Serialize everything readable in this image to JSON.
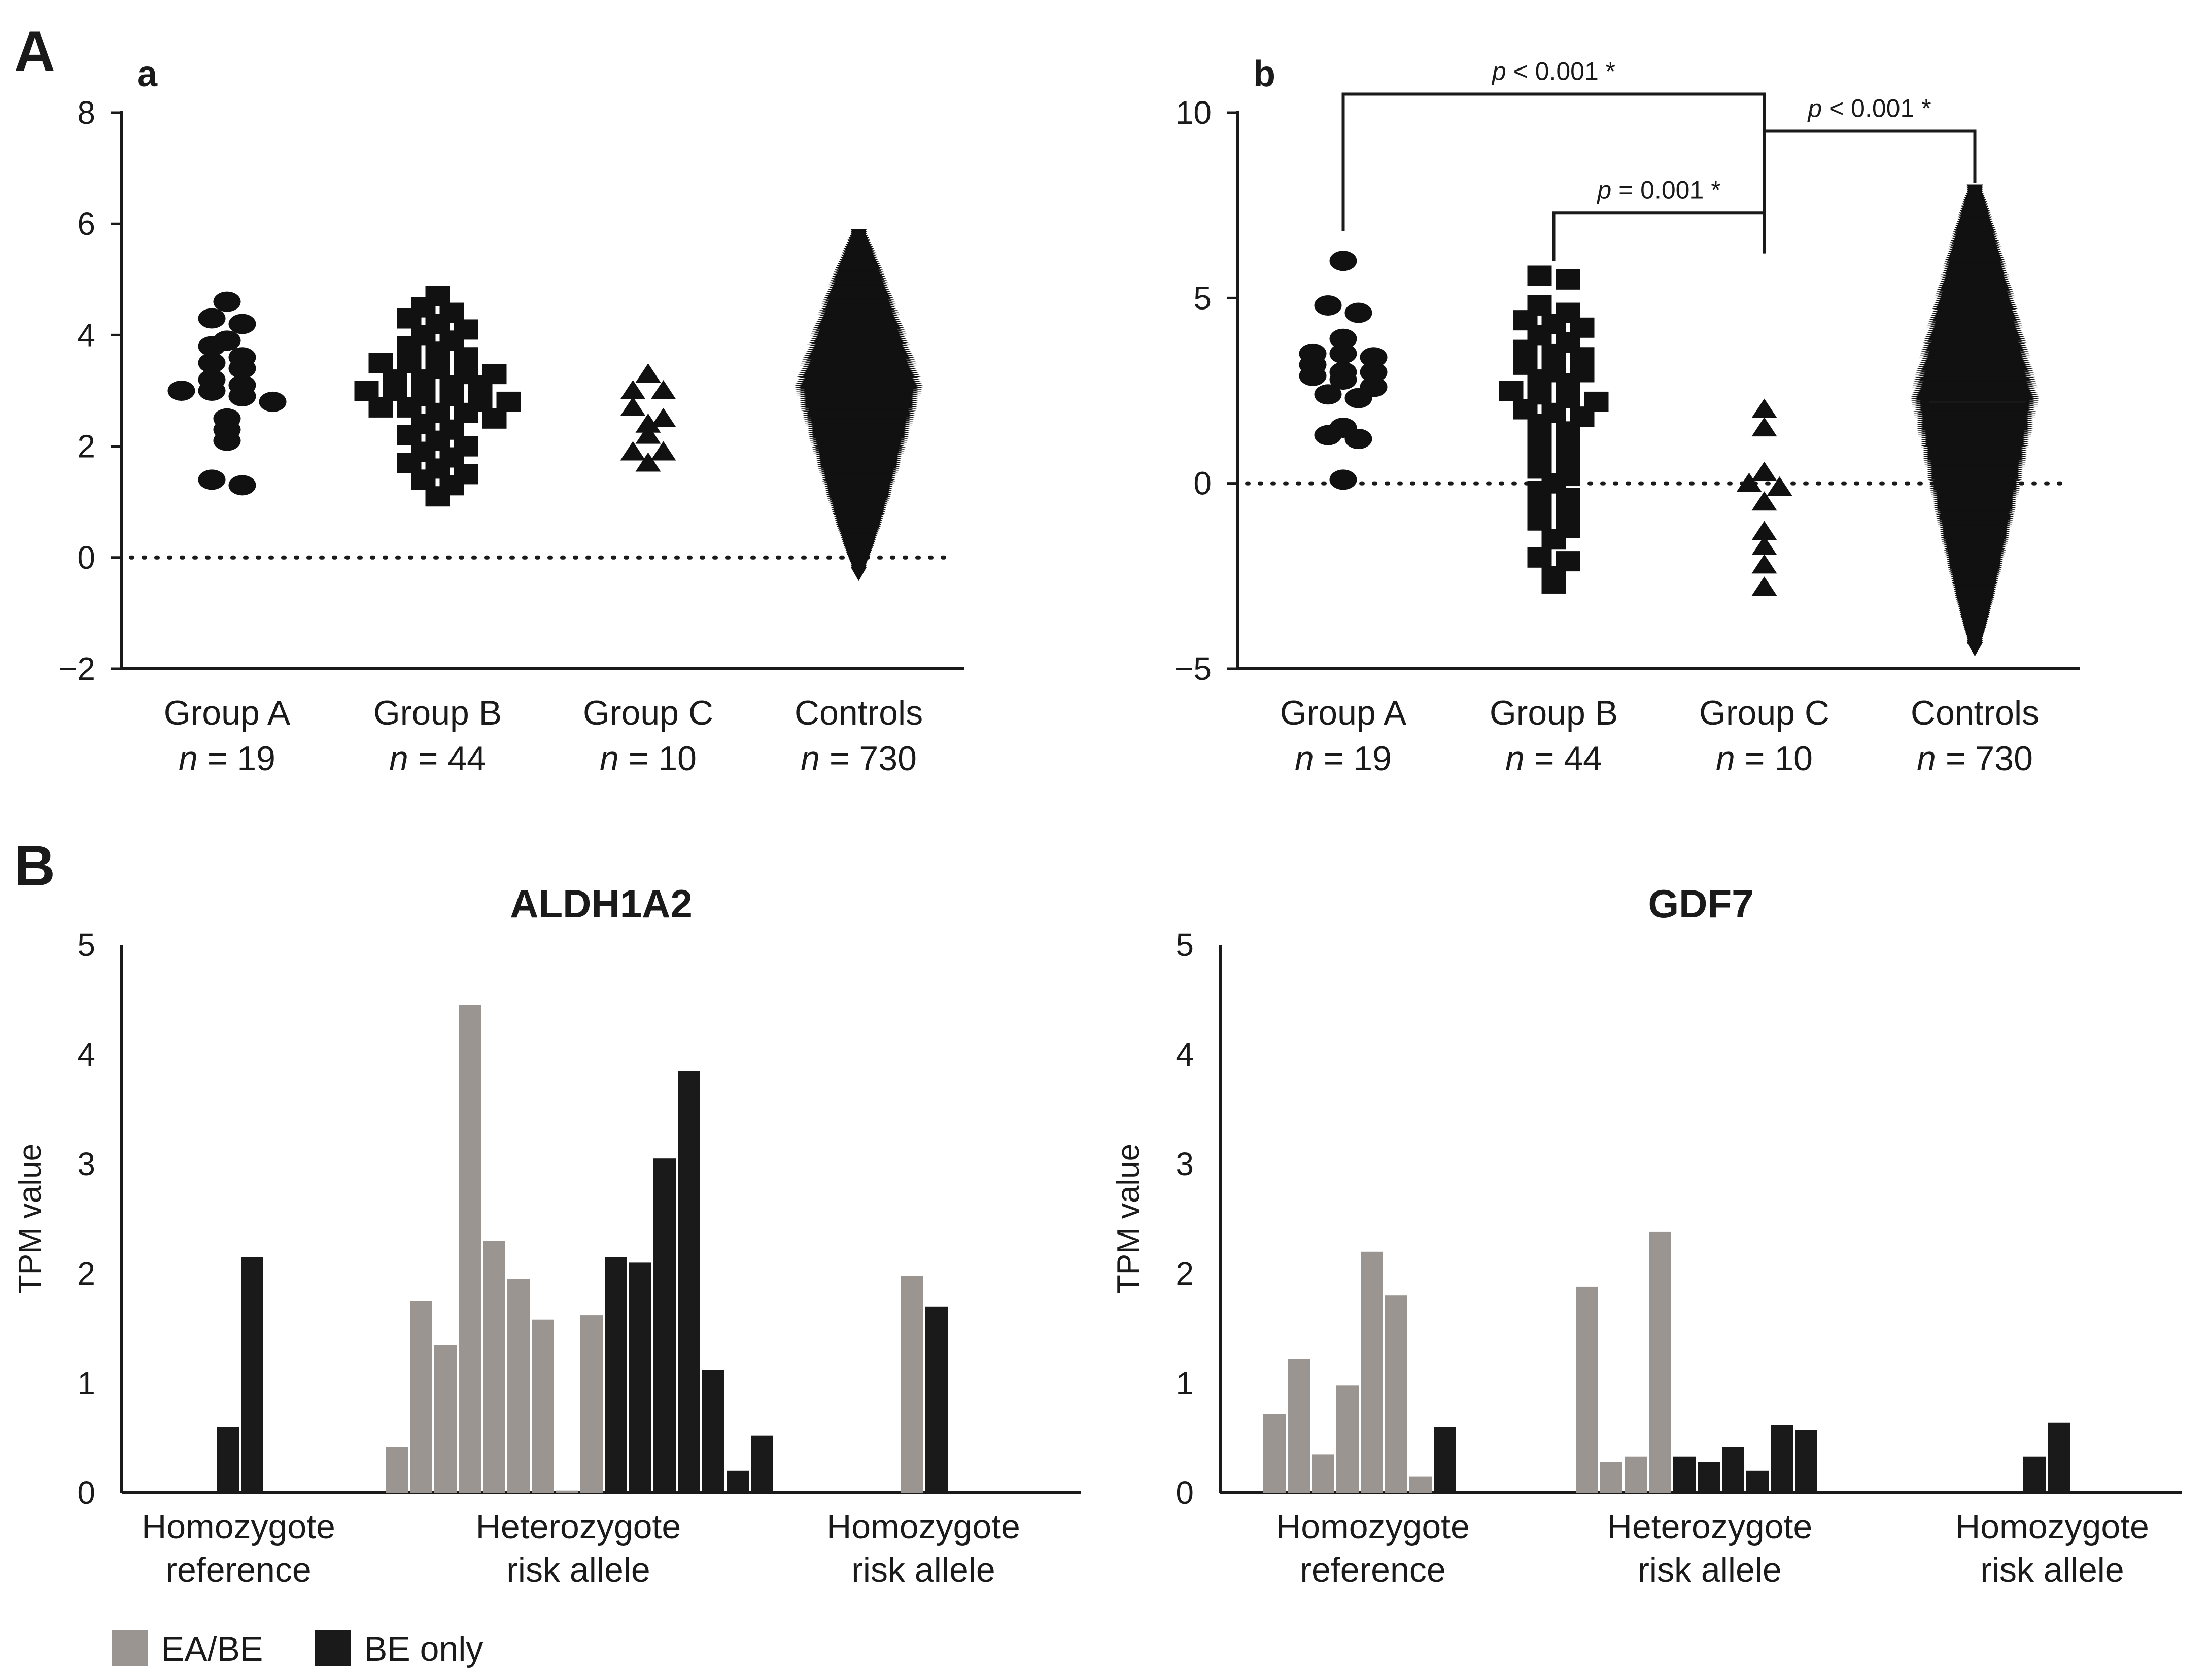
{
  "figure": {
    "panel_A_label": "A",
    "panel_B_label": "B",
    "legend": {
      "items": [
        {
          "label": "EA/BE",
          "color": "#9b9591"
        },
        {
          "label": "BE only",
          "color": "#1a1a1a"
        }
      ]
    }
  },
  "chart_data": [
    {
      "id": "A-a",
      "type": "scatter",
      "subtitle": "a",
      "ylim": [
        -2,
        8
      ],
      "yticks": [
        -2,
        0,
        2,
        4,
        6,
        8
      ],
      "ytick_labels": [
        "−2",
        "0",
        "2",
        "4",
        "6",
        "8"
      ],
      "reference_line": 0,
      "groups": [
        {
          "label": "Group A",
          "n_prefix": "n",
          "n_text": " = 19",
          "marker": "ellipse",
          "values": [
            4.6,
            4.3,
            4.2,
            3.9,
            3.8,
            3.6,
            3.5,
            3.4,
            3.2,
            3.1,
            3.0,
            3.0,
            2.9,
            2.8,
            2.5,
            2.3,
            2.1,
            1.4,
            1.3
          ]
        },
        {
          "label": "Group B",
          "n_prefix": "n",
          "n_text": " = 44",
          "marker": "square",
          "values": [
            4.7,
            4.5,
            4.4,
            4.3,
            4.2,
            4.1,
            4.0,
            3.9,
            3.8,
            3.7,
            3.6,
            3.5,
            3.5,
            3.4,
            3.3,
            3.3,
            3.2,
            3.2,
            3.1,
            3.1,
            3.0,
            3.0,
            2.9,
            2.9,
            2.8,
            2.8,
            2.7,
            2.7,
            2.6,
            2.6,
            2.5,
            2.4,
            2.3,
            2.2,
            2.1,
            2.0,
            1.9,
            1.8,
            1.7,
            1.6,
            1.5,
            1.4,
            1.3,
            1.1
          ]
        },
        {
          "label": "Group C",
          "n_prefix": "n",
          "n_text": " = 10",
          "marker": "triangle",
          "values": [
            3.3,
            3.0,
            3.0,
            2.7,
            2.5,
            2.4,
            2.2,
            1.9,
            1.9,
            1.7
          ]
        },
        {
          "label": "Controls",
          "n_prefix": "n",
          "n_text": " = 730",
          "marker": "triangle-down",
          "distribution": true,
          "range": [
            -0.3,
            5.8
          ],
          "center": 3.0
        }
      ]
    },
    {
      "id": "A-b",
      "type": "scatter",
      "subtitle": "b",
      "ylim": [
        -5,
        10
      ],
      "yticks": [
        -5,
        0,
        5,
        10
      ],
      "ytick_labels": [
        "−5",
        "0",
        "5",
        "10"
      ],
      "reference_line": 0,
      "groups": [
        {
          "label": "Group A",
          "n_prefix": "n",
          "n_text": " = 19",
          "marker": "ellipse",
          "values": [
            6.0,
            4.8,
            4.6,
            3.9,
            3.5,
            3.5,
            3.4,
            3.2,
            3.0,
            3.0,
            2.9,
            2.8,
            2.6,
            2.4,
            2.3,
            1.5,
            1.3,
            1.2,
            0.1
          ]
        },
        {
          "label": "Group B",
          "n_prefix": "n",
          "n_text": " = 44",
          "marker": "square",
          "values": [
            5.6,
            5.5,
            4.8,
            4.6,
            4.4,
            4.3,
            4.2,
            4.0,
            3.8,
            3.6,
            3.5,
            3.4,
            3.2,
            3.0,
            3.0,
            2.8,
            2.7,
            2.5,
            2.4,
            2.3,
            2.2,
            2.0,
            1.9,
            1.8,
            1.6,
            1.4,
            1.2,
            1.0,
            0.8,
            0.6,
            0.4,
            0.2,
            0.0,
            -0.2,
            -0.4,
            -0.6,
            -0.8,
            -1.0,
            -1.2,
            -1.5,
            -2.0,
            -2.1,
            -2.5,
            -2.7
          ]
        },
        {
          "label": "Group C",
          "n_prefix": "n",
          "n_text": " = 10",
          "marker": "triangle",
          "values": [
            2.0,
            1.5,
            0.3,
            0.0,
            -0.1,
            -0.5,
            -1.3,
            -1.7,
            -2.2,
            -2.8
          ]
        },
        {
          "label": "Controls",
          "n_prefix": "n",
          "n_text": " = 730",
          "marker": "triangle-down",
          "distribution": true,
          "range": [
            -4.5,
            7.9
          ],
          "center": 2.2,
          "median": 2.2
        }
      ],
      "annotations": [
        {
          "label_prefix": "p",
          "label_text": " < 0.001 *",
          "from_group": 0,
          "to_group": 2,
          "y": 10.5
        },
        {
          "label_prefix": "p",
          "label_text": " < 0.001 *",
          "from_group": 2,
          "to_group": 3,
          "y": 9.5
        },
        {
          "label_prefix": "p",
          "label_text": " = 0.001 *",
          "from_group": 1,
          "to_group": 2,
          "y": 7.3
        }
      ]
    },
    {
      "id": "B-ALDH1A2",
      "type": "bar",
      "title": "ALDH1A2",
      "ylabel": "TPM value",
      "ylim": [
        0,
        5
      ],
      "yticks": [
        0,
        1,
        2,
        3,
        4,
        5
      ],
      "groups": [
        {
          "label_line1": "Homozygote",
          "label_line2": "reference",
          "bars": [
            {
              "v": 0.6,
              "c": "BE"
            },
            {
              "v": 2.15,
              "c": "BE"
            }
          ]
        },
        {
          "label_line1": "Heterozygote",
          "label_line2": "risk allele",
          "bars": [
            {
              "v": 0.42,
              "c": "EA"
            },
            {
              "v": 1.75,
              "c": "EA"
            },
            {
              "v": 1.35,
              "c": "EA"
            },
            {
              "v": 4.45,
              "c": "EA"
            },
            {
              "v": 2.3,
              "c": "EA"
            },
            {
              "v": 1.95,
              "c": "EA"
            },
            {
              "v": 1.58,
              "c": "EA"
            },
            {
              "v": 0.02,
              "c": "EA"
            },
            {
              "v": 1.62,
              "c": "EA"
            },
            {
              "v": 2.15,
              "c": "BE"
            },
            {
              "v": 2.1,
              "c": "BE"
            },
            {
              "v": 3.05,
              "c": "BE"
            },
            {
              "v": 3.85,
              "c": "BE"
            },
            {
              "v": 1.12,
              "c": "BE"
            },
            {
              "v": 0.2,
              "c": "BE"
            },
            {
              "v": 0.52,
              "c": "BE"
            }
          ]
        },
        {
          "label_line1": "Homozygote",
          "label_line2": "risk allele",
          "bars": [
            {
              "v": 1.98,
              "c": "EA"
            },
            {
              "v": 1.7,
              "c": "BE"
            }
          ]
        }
      ]
    },
    {
      "id": "B-GDF7",
      "type": "bar",
      "title": "GDF7",
      "ylabel": "TPM value",
      "ylim": [
        0,
        5
      ],
      "yticks": [
        0,
        1,
        2,
        3,
        4,
        5
      ],
      "groups": [
        {
          "label_line1": "Homozygote",
          "label_line2": "reference",
          "bars": [
            {
              "v": 0.72,
              "c": "EA"
            },
            {
              "v": 1.22,
              "c": "EA"
            },
            {
              "v": 0.35,
              "c": "EA"
            },
            {
              "v": 0.98,
              "c": "EA"
            },
            {
              "v": 2.2,
              "c": "EA"
            },
            {
              "v": 1.8,
              "c": "EA"
            },
            {
              "v": 0.15,
              "c": "EA"
            },
            {
              "v": 0.6,
              "c": "BE"
            }
          ]
        },
        {
          "label_line1": "Heterozygote",
          "label_line2": "risk allele",
          "bars": [
            {
              "v": 1.88,
              "c": "EA"
            },
            {
              "v": 0.28,
              "c": "EA"
            },
            {
              "v": 0.33,
              "c": "EA"
            },
            {
              "v": 2.38,
              "c": "EA"
            },
            {
              "v": 0.33,
              "c": "BE"
            },
            {
              "v": 0.28,
              "c": "BE"
            },
            {
              "v": 0.42,
              "c": "BE"
            },
            {
              "v": 0.2,
              "c": "BE"
            },
            {
              "v": 0.62,
              "c": "BE"
            },
            {
              "v": 0.57,
              "c": "BE"
            }
          ]
        },
        {
          "label_line1": "Homozygote",
          "label_line2": "risk allele",
          "bars": [
            {
              "v": 0.33,
              "c": "BE"
            },
            {
              "v": 0.64,
              "c": "BE"
            }
          ]
        }
      ]
    }
  ]
}
